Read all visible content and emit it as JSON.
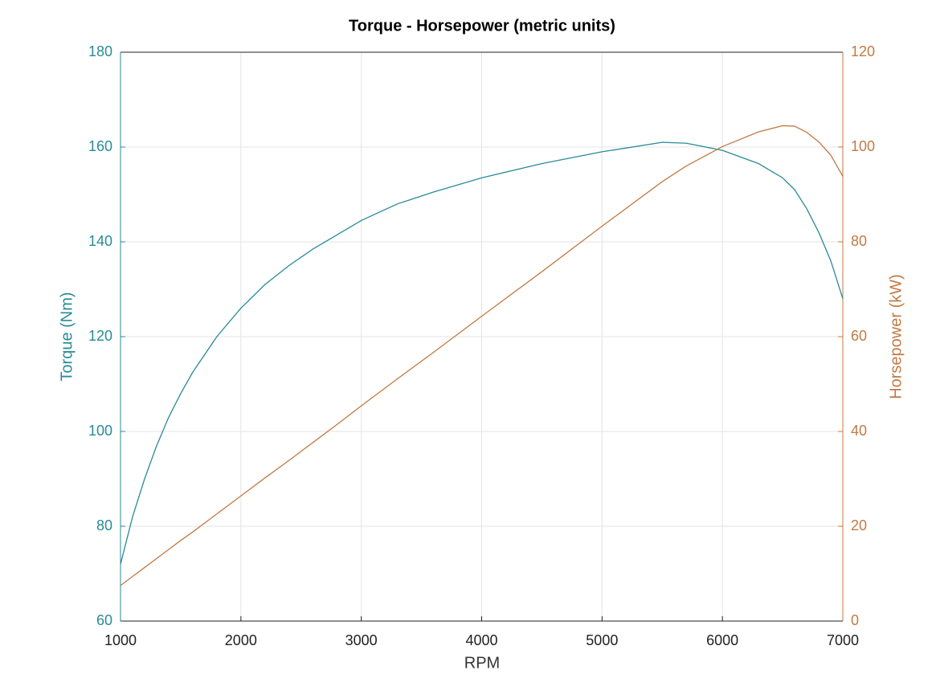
{
  "chart_data": {
    "type": "line",
    "title": "Torque - Horsepower (metric units)",
    "xlabel": "RPM",
    "ylabel": "Torque (Nm)",
    "y2label": "Horsepower (kW)",
    "x": [
      1000,
      1100,
      1200,
      1300,
      1400,
      1500,
      1600,
      1800,
      2000,
      2200,
      2400,
      2600,
      2800,
      3000,
      3300,
      3600,
      4000,
      4500,
      5000,
      5500,
      5700,
      6000,
      6300,
      6500,
      6600,
      6700,
      6800,
      6900,
      7000
    ],
    "series": [
      {
        "name": "Torque (Nm)",
        "color": "#2a8a98",
        "values": [
          72,
          82,
          90,
          97,
          103,
          108,
          112.5,
          120,
          126,
          131,
          135,
          138.5,
          141.5,
          144.5,
          148,
          150.5,
          153.5,
          156.5,
          159,
          161,
          160.8,
          159.3,
          156.5,
          153.5,
          151,
          147,
          142,
          136,
          128
        ]
      },
      {
        "name": "Horsepower (kW)",
        "color": "#c17a45",
        "axis": "y2",
        "values": [
          7.5,
          9.4,
          11.3,
          13.2,
          15.1,
          17.0,
          18.8,
          22.6,
          26.4,
          30.2,
          33.9,
          37.7,
          41.5,
          45.4,
          51.1,
          56.7,
          64.3,
          73.7,
          83.3,
          92.7,
          96.0,
          100.1,
          103.2,
          104.5,
          104.4,
          103.1,
          101.1,
          98.3,
          93.8
        ]
      }
    ],
    "xlim": [
      1000,
      7000
    ],
    "xticks": [
      1000,
      2000,
      3000,
      4000,
      5000,
      6000,
      7000
    ],
    "ylim": [
      60,
      180
    ],
    "yticks": [
      60,
      80,
      100,
      120,
      140,
      160,
      180
    ],
    "y2lim": [
      0,
      120
    ],
    "y2ticks": [
      0,
      20,
      40,
      60,
      80,
      100,
      120
    ],
    "grid": true
  }
}
